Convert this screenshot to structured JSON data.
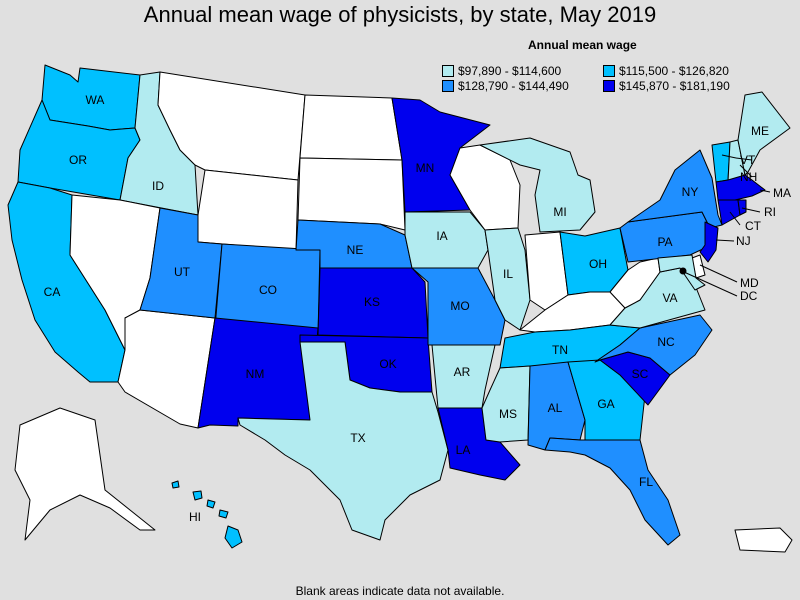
{
  "title": "Annual mean wage of physicists, by state, May 2019",
  "legend": {
    "title": "Annual mean wage",
    "bins": [
      {
        "label": "$97,890 - $114,600",
        "color": "#b2ebf0"
      },
      {
        "label": "$115,500 - $126,820",
        "color": "#00c0ff"
      },
      {
        "label": "$128,790 - $144,490",
        "color": "#1f8fff"
      },
      {
        "label": "$145,870 - $181,190",
        "color": "#0000ee"
      }
    ]
  },
  "no_data_color": "#ffffff",
  "footnote": "Blank areas indicate data not available.",
  "states": {
    "WA": {
      "label": "WA",
      "bin": 1
    },
    "OR": {
      "label": "OR",
      "bin": 1
    },
    "CA": {
      "label": "CA",
      "bin": 1
    },
    "ID": {
      "label": "ID",
      "bin": 0
    },
    "NV": {
      "label": "",
      "bin": -1
    },
    "AZ": {
      "label": "",
      "bin": -1
    },
    "MT": {
      "label": "",
      "bin": -1
    },
    "WY": {
      "label": "",
      "bin": -1
    },
    "UT": {
      "label": "UT",
      "bin": 2
    },
    "CO": {
      "label": "CO",
      "bin": 2
    },
    "NM": {
      "label": "NM",
      "bin": 3
    },
    "ND": {
      "label": "",
      "bin": -1
    },
    "SD": {
      "label": "",
      "bin": -1
    },
    "NE": {
      "label": "NE",
      "bin": 2
    },
    "KS": {
      "label": "KS",
      "bin": 3
    },
    "OK": {
      "label": "OK",
      "bin": 3
    },
    "TX": {
      "label": "TX",
      "bin": 0
    },
    "MN": {
      "label": "MN",
      "bin": 3
    },
    "IA": {
      "label": "IA",
      "bin": 0
    },
    "MO": {
      "label": "MO",
      "bin": 2
    },
    "AR": {
      "label": "AR",
      "bin": 0
    },
    "LA": {
      "label": "LA",
      "bin": 3
    },
    "WI": {
      "label": "",
      "bin": -1
    },
    "IL": {
      "label": "IL",
      "bin": 0
    },
    "MI": {
      "label": "MI",
      "bin": 0
    },
    "IN": {
      "label": "",
      "bin": -1
    },
    "OH": {
      "label": "OH",
      "bin": 1
    },
    "KY": {
      "label": "",
      "bin": -1
    },
    "TN": {
      "label": "TN",
      "bin": 1
    },
    "MS": {
      "label": "MS",
      "bin": 0
    },
    "AL": {
      "label": "AL",
      "bin": 2
    },
    "GA": {
      "label": "GA",
      "bin": 1
    },
    "FL": {
      "label": "FL",
      "bin": 2
    },
    "SC": {
      "label": "SC",
      "bin": 3
    },
    "NC": {
      "label": "NC",
      "bin": 2
    },
    "VA": {
      "label": "VA",
      "bin": 0
    },
    "WV": {
      "label": "",
      "bin": -1
    },
    "PA": {
      "label": "PA",
      "bin": 2
    },
    "NY": {
      "label": "NY",
      "bin": 2
    },
    "ME": {
      "label": "ME",
      "bin": 0
    },
    "VT": {
      "label": "VT",
      "bin": 1
    },
    "NH": {
      "label": "NH",
      "bin": 0
    },
    "MA": {
      "label": "MA",
      "bin": 3
    },
    "CT": {
      "label": "CT",
      "bin": 3
    },
    "RI": {
      "label": "RI",
      "bin": 3
    },
    "NJ": {
      "label": "NJ",
      "bin": 3
    },
    "MD": {
      "label": "MD",
      "bin": 0
    },
    "DE": {
      "label": "",
      "bin": -1
    },
    "DC": {
      "label": "DC",
      "bin": 0
    },
    "AK": {
      "label": "",
      "bin": -1
    },
    "HI": {
      "label": "HI",
      "bin": 1
    },
    "PR": {
      "label": "",
      "bin": -1
    }
  }
}
